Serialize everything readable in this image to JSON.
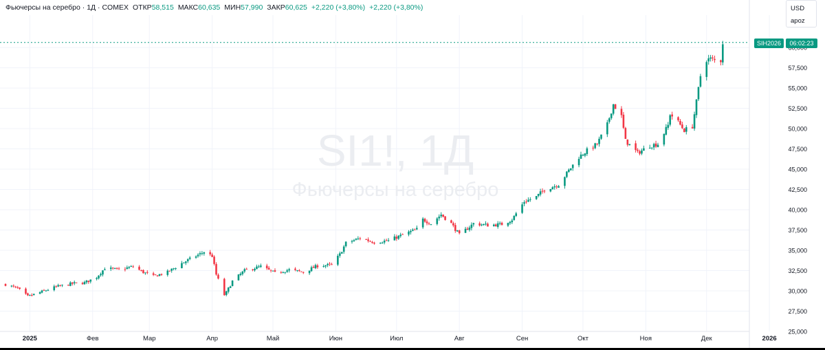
{
  "header": {
    "title": "Фьючерсы на серебро · 1Д · COMEX",
    "open_label": "ОТКР",
    "open_value": "58,515",
    "high_label": "МАКС",
    "high_value": "60,635",
    "low_label": "МИН",
    "low_value": "57,990",
    "close_label": "ЗАКР",
    "close_value": "60,625",
    "change1": "+2,220 (+3,80%)",
    "change2": "+2,220 (+3,80%)"
  },
  "unit_box": {
    "currency": "USD",
    "mode": "apoz"
  },
  "watermark": {
    "symbol": "SI1!, 1Д",
    "name": "Фьючерсы на серебро"
  },
  "price_tag": {
    "symbol": "SIH2026",
    "countdown": "06:02:23",
    "price": 60.625,
    "color": "#089981"
  },
  "colors": {
    "up": "#089981",
    "down": "#f23645",
    "grid": "#f0f3fa",
    "axis_text": "#131722"
  },
  "chart_data": {
    "type": "candlestick",
    "title": "Фьючерсы на серебро · 1Д · COMEX",
    "y_axis": {
      "position": "right",
      "range": [
        25,
        60.6
      ],
      "ticks": [
        25,
        27.5,
        30,
        32.5,
        35,
        37.5,
        40,
        42.5,
        45,
        47.5,
        50,
        52.5,
        55,
        57.5,
        60
      ],
      "tick_labels": [
        "25,000",
        "27,500",
        "30,000",
        "32,500",
        "35,000",
        "37,500",
        "40,000",
        "42,500",
        "45,000",
        "47,500",
        "50,000",
        "52,500",
        "55,000",
        "57,500",
        "60,000"
      ]
    },
    "x_axis": {
      "range": [
        "2024-12-20",
        "2026-01-03"
      ],
      "labels": [
        {
          "date": "2025-01-01",
          "text": "2025",
          "bold": true
        },
        {
          "date": "2025-02-01",
          "text": "Фев"
        },
        {
          "date": "2025-03-01",
          "text": "Мар"
        },
        {
          "date": "2025-04-01",
          "text": "Апр"
        },
        {
          "date": "2025-05-01",
          "text": "Май"
        },
        {
          "date": "2025-06-01",
          "text": "Июн"
        },
        {
          "date": "2025-07-01",
          "text": "Июл"
        },
        {
          "date": "2025-08-01",
          "text": "Авг"
        },
        {
          "date": "2025-09-01",
          "text": "Сен"
        },
        {
          "date": "2025-10-01",
          "text": "Окт"
        },
        {
          "date": "2025-11-01",
          "text": "Ноя"
        },
        {
          "date": "2025-12-01",
          "text": "Дек"
        },
        {
          "date": "2026-01-01",
          "text": "2026",
          "bold": true
        }
      ]
    },
    "close_path": [
      [
        "2024-12-20",
        30.8
      ],
      [
        "2024-12-26",
        30.3
      ],
      [
        "2024-12-31",
        29.3
      ],
      [
        "2025-01-07",
        29.9
      ],
      [
        "2025-01-14",
        30.5
      ],
      [
        "2025-01-22",
        30.9
      ],
      [
        "2025-01-28",
        31.0
      ],
      [
        "2025-02-03",
        31.7
      ],
      [
        "2025-02-07",
        32.8
      ],
      [
        "2025-02-14",
        32.6
      ],
      [
        "2025-02-21",
        33.0
      ],
      [
        "2025-02-26",
        32.3
      ],
      [
        "2025-03-03",
        31.8
      ],
      [
        "2025-03-10",
        32.3
      ],
      [
        "2025-03-17",
        33.4
      ],
      [
        "2025-03-24",
        34.3
      ],
      [
        "2025-03-28",
        34.8
      ],
      [
        "2025-04-01",
        34.3
      ],
      [
        "2025-04-03",
        32.0
      ],
      [
        "2025-04-07",
        29.5
      ],
      [
        "2025-04-08",
        29.8
      ],
      [
        "2025-04-11",
        31.2
      ],
      [
        "2025-04-17",
        32.5
      ],
      [
        "2025-04-25",
        33.0
      ],
      [
        "2025-05-02",
        32.2
      ],
      [
        "2025-05-09",
        32.6
      ],
      [
        "2025-05-16",
        32.3
      ],
      [
        "2025-05-23",
        33.1
      ],
      [
        "2025-05-30",
        33.2
      ],
      [
        "2025-06-03",
        34.5
      ],
      [
        "2025-06-06",
        35.9
      ],
      [
        "2025-06-13",
        36.5
      ],
      [
        "2025-06-20",
        36.0
      ],
      [
        "2025-06-27",
        36.2
      ],
      [
        "2025-07-03",
        36.8
      ],
      [
        "2025-07-11",
        37.6
      ],
      [
        "2025-07-14",
        38.8
      ],
      [
        "2025-07-18",
        38.3
      ],
      [
        "2025-07-23",
        39.4
      ],
      [
        "2025-07-28",
        38.3
      ],
      [
        "2025-08-01",
        36.9
      ],
      [
        "2025-08-08",
        38.3
      ],
      [
        "2025-08-15",
        38.1
      ],
      [
        "2025-08-22",
        38.2
      ],
      [
        "2025-08-27",
        38.8
      ],
      [
        "2025-09-02",
        41.0
      ],
      [
        "2025-09-08",
        41.6
      ],
      [
        "2025-09-12",
        42.5
      ],
      [
        "2025-09-19",
        43.1
      ],
      [
        "2025-09-23",
        44.5
      ],
      [
        "2025-09-29",
        46.5
      ],
      [
        "2025-10-03",
        47.3
      ],
      [
        "2025-10-08",
        48.1
      ],
      [
        "2025-10-13",
        50.5
      ],
      [
        "2025-10-16",
        53.0
      ],
      [
        "2025-10-20",
        51.5
      ],
      [
        "2025-10-22",
        48.5
      ],
      [
        "2025-10-28",
        47.0
      ],
      [
        "2025-11-03",
        47.9
      ],
      [
        "2025-11-07",
        48.1
      ],
      [
        "2025-11-12",
        50.4
      ],
      [
        "2025-11-13",
        51.8
      ],
      [
        "2025-11-17",
        50.8
      ],
      [
        "2025-11-20",
        49.8
      ],
      [
        "2025-11-24",
        50.3
      ],
      [
        "2025-11-26",
        53.3
      ],
      [
        "2025-11-28",
        56.5
      ],
      [
        "2025-12-01",
        58.5
      ],
      [
        "2025-12-03",
        58.6
      ],
      [
        "2025-12-05",
        58.4
      ],
      [
        "2025-12-08",
        58.4
      ],
      [
        "2025-12-09",
        60.6
      ]
    ]
  }
}
